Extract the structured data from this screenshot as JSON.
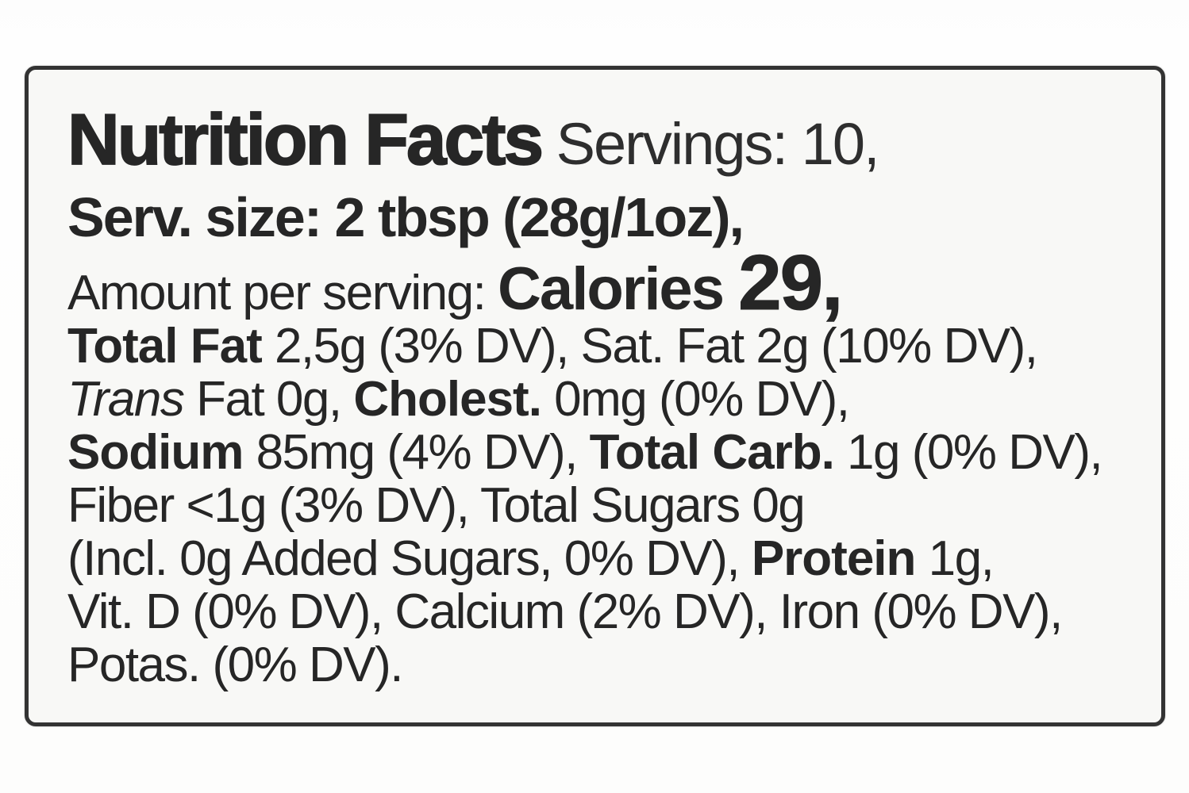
{
  "colors": {
    "paper_outside": "#fdfdfd",
    "paper_label": "#f8f8f6",
    "border": "#333333",
    "ink": "#262626"
  },
  "label": {
    "title": "Nutrition Facts",
    "servings_text": "Servings: 10,",
    "serving_size_text": "Serv. size: 2 tbsp (28g/1oz),",
    "amount_per_serving_text": "Amount per serving:",
    "calories_label": "Calories",
    "calories_value": "29,",
    "lines": [
      {
        "name": "title-line",
        "style": "l-title",
        "segments": [
          {
            "style": "s-title",
            "text": "Nutrition Facts"
          },
          {
            "style": "s-title-reg",
            "text": " Servings: 10,"
          }
        ]
      },
      {
        "name": "serving-size-line",
        "style": "l-h2",
        "segments": [
          {
            "style": "s-h2",
            "text": "Serv. size: 2 tbsp (28g/1oz),"
          }
        ]
      },
      {
        "name": "calories-line",
        "style": "l-cal",
        "segments": [
          {
            "style": "s-reg",
            "text": "Amount per serving: "
          },
          {
            "style": "s-cal-label",
            "text": "Calories "
          },
          {
            "style": "s-cal-num",
            "text": "29,"
          }
        ]
      },
      {
        "name": "total-fat-line",
        "style": "l-body",
        "segments": [
          {
            "style": "s-b",
            "text": "Total Fat "
          },
          {
            "style": "s-reg",
            "text": "2,5g (3% DV), Sat. Fat 2g (10% DV),"
          }
        ]
      },
      {
        "name": "trans-fat-cholesterol-line",
        "style": "l-body",
        "segments": [
          {
            "style": "s-i",
            "text": "Trans"
          },
          {
            "style": "s-reg",
            "text": " Fat 0g, "
          },
          {
            "style": "s-b",
            "text": "Cholest. "
          },
          {
            "style": "s-reg",
            "text": "0mg (0% DV),"
          }
        ]
      },
      {
        "name": "sodium-carb-line",
        "style": "l-body",
        "segments": [
          {
            "style": "s-b",
            "text": "Sodium "
          },
          {
            "style": "s-reg",
            "text": "85mg (4% DV), "
          },
          {
            "style": "s-b",
            "text": "Total Carb. "
          },
          {
            "style": "s-reg",
            "text": "1g (0% DV),"
          }
        ]
      },
      {
        "name": "fiber-sugars-line",
        "style": "l-body",
        "segments": [
          {
            "style": "s-reg",
            "text": "Fiber <1g (3% DV), Total Sugars 0g"
          }
        ]
      },
      {
        "name": "added-sugars-protein-line",
        "style": "l-body",
        "segments": [
          {
            "style": "s-reg",
            "text": "(Incl. 0g Added Sugars, 0% DV), "
          },
          {
            "style": "s-b",
            "text": "Protein "
          },
          {
            "style": "s-reg",
            "text": "1g,"
          }
        ]
      },
      {
        "name": "vitamins-minerals-line",
        "style": "l-body",
        "segments": [
          {
            "style": "s-reg",
            "text": "Vit. D (0% DV), Calcium (2% DV), Iron (0% DV),"
          }
        ]
      },
      {
        "name": "potassium-line",
        "style": "l-body",
        "segments": [
          {
            "style": "s-reg",
            "text": "Potas. (0% DV)."
          }
        ]
      }
    ]
  }
}
